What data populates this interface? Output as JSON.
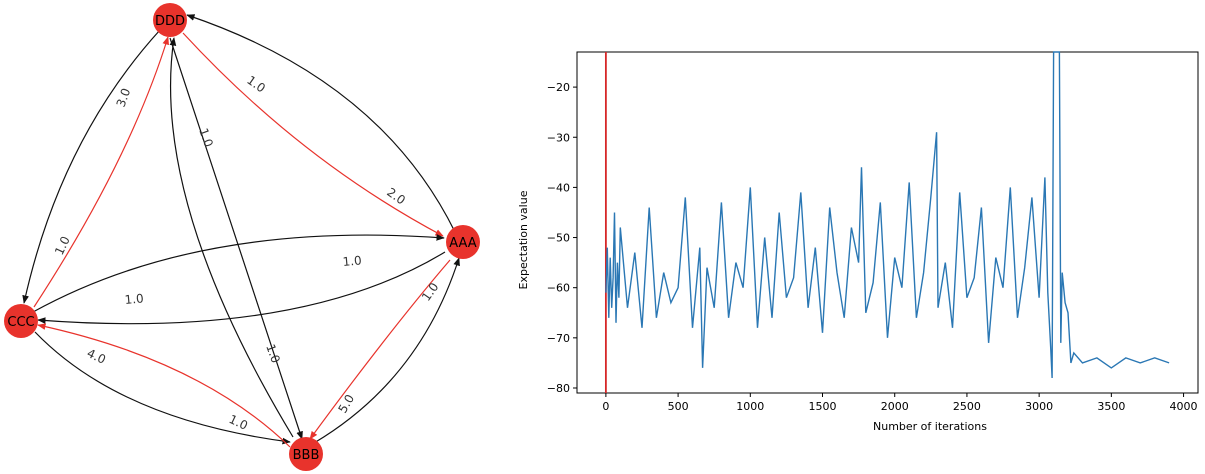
{
  "colors": {
    "node_fill": "#e8332c",
    "edge_black": "#111111",
    "edge_red": "#e8332c",
    "series": "#2a77b4",
    "marker_line": "#d62728"
  },
  "graph": {
    "nodes": [
      {
        "id": "DDD",
        "label": "DDD"
      },
      {
        "id": "AAA",
        "label": "AAA"
      },
      {
        "id": "CCC",
        "label": "CCC"
      },
      {
        "id": "BBB",
        "label": "BBB"
      }
    ],
    "edges": [
      {
        "from": "AAA",
        "to": "DDD",
        "label": "1.0",
        "color": "black"
      },
      {
        "from": "DDD",
        "to": "AAA",
        "label": "2.0",
        "color": "red"
      },
      {
        "from": "DDD",
        "to": "CCC",
        "label": "3.0",
        "color": "black"
      },
      {
        "from": "CCC",
        "to": "DDD",
        "label": "1.0",
        "color": "red"
      },
      {
        "from": "DDD",
        "to": "BBB",
        "label": "1.0",
        "color": "black"
      },
      {
        "from": "BBB",
        "to": "DDD",
        "label": "1.0",
        "color": "black"
      },
      {
        "from": "CCC",
        "to": "AAA",
        "label": "1.0",
        "color": "black"
      },
      {
        "from": "AAA",
        "to": "CCC",
        "label": "1.0",
        "color": "black"
      },
      {
        "from": "CCC",
        "to": "BBB",
        "label": "4.0",
        "color": "black"
      },
      {
        "from": "BBB",
        "to": "CCC",
        "label": "1.0",
        "color": "red"
      },
      {
        "from": "BBB",
        "to": "AAA",
        "label": "5.0",
        "color": "black"
      },
      {
        "from": "AAA",
        "to": "BBB",
        "label": "1.0",
        "color": "red"
      }
    ]
  },
  "chart_data": {
    "type": "line",
    "xlabel": "Number of iterations",
    "ylabel": "Expectation value",
    "xlim": [
      -200,
      4100
    ],
    "ylim": [
      -81,
      -13
    ],
    "xticks": [
      0,
      500,
      1000,
      1500,
      2000,
      2500,
      3000,
      3500,
      4000
    ],
    "yticks": [
      -80,
      -70,
      -60,
      -50,
      -40,
      -30,
      -20
    ],
    "grid": false,
    "vline_x": 0,
    "series": [
      {
        "x": [
          0,
          10,
          20,
          30,
          40,
          50,
          60,
          70,
          80,
          90,
          100,
          150,
          200,
          250,
          300,
          350,
          400,
          450,
          500,
          550,
          600,
          650,
          670,
          700,
          750,
          800,
          850,
          900,
          950,
          1000,
          1050,
          1100,
          1150,
          1200,
          1250,
          1300,
          1350,
          1400,
          1450,
          1500,
          1550,
          1600,
          1650,
          1700,
          1750,
          1770,
          1800,
          1850,
          1900,
          1950,
          2000,
          2050,
          2100,
          2150,
          2200,
          2250,
          2290,
          2300,
          2350,
          2400,
          2450,
          2500,
          2550,
          2600,
          2650,
          2700,
          2750,
          2800,
          2850,
          2900,
          2950,
          3000,
          3040,
          3060,
          3080,
          3090,
          3100,
          3110,
          3120,
          3130,
          3140,
          3150,
          3160,
          3180,
          3200,
          3220,
          3240,
          3300,
          3400,
          3500,
          3600,
          3700,
          3800,
          3900
        ],
        "values": [
          -61,
          -52,
          -66,
          -54,
          -64,
          -58,
          -45,
          -67,
          -55,
          -62,
          -48,
          -64,
          -53,
          -68,
          -44,
          -66,
          -57,
          -63,
          -60,
          -42,
          -68,
          -52,
          -76,
          -56,
          -64,
          -43,
          -66,
          -55,
          -60,
          -40,
          -68,
          -50,
          -66,
          -45,
          -62,
          -58,
          -41,
          -64,
          -52,
          -69,
          -44,
          -57,
          -66,
          -48,
          -55,
          -36,
          -65,
          -59,
          -43,
          -70,
          -54,
          -60,
          -39,
          -66,
          -57,
          -42,
          -29,
          -64,
          -55,
          -68,
          -41,
          -62,
          -58,
          -44,
          -71,
          -54,
          -60,
          -40,
          -66,
          -56,
          -42,
          -62,
          -38,
          -61,
          -72,
          -78,
          -13,
          -13,
          -13,
          -13,
          -13,
          -71,
          -57,
          -63,
          -65,
          -75,
          -73,
          -75,
          -74,
          -76,
          -74,
          -75,
          -74,
          -75
        ]
      }
    ]
  }
}
